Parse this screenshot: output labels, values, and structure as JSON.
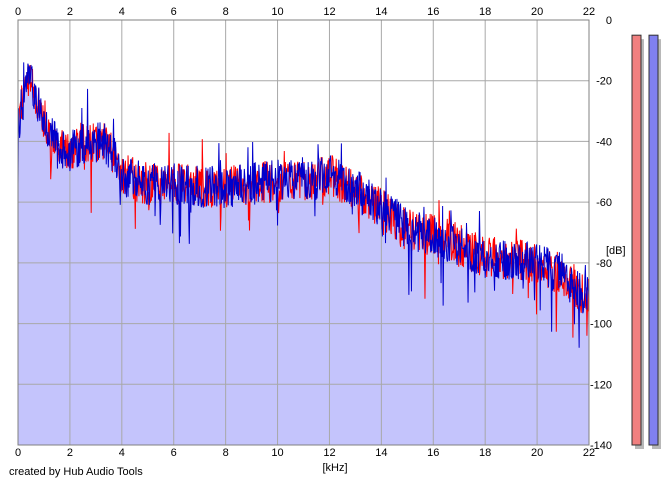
{
  "chart_data": {
    "type": "area",
    "xlabel": "[kHz]",
    "ylabel": "[dB]",
    "xlim": [
      0,
      22
    ],
    "ylim": [
      -140,
      0
    ],
    "x_ticks": [
      0,
      2,
      4,
      6,
      8,
      10,
      12,
      14,
      16,
      18,
      20,
      22
    ],
    "y_ticks": [
      0,
      -20,
      -40,
      -60,
      -80,
      -100,
      -120,
      -140
    ],
    "grid": true,
    "series": [
      {
        "color": "#0000cc"
      },
      {
        "color": "#ff0000"
      }
    ],
    "fill_color": "#c4c4fc",
    "envelope": {
      "x": [
        0,
        0.1,
        0.2,
        0.3,
        0.4,
        0.5,
        0.7,
        1.0,
        1.5,
        2.0,
        2.5,
        3.0,
        3.3,
        3.6,
        4.0,
        4.5,
        5.0,
        6.0,
        7.0,
        8.0,
        9.0,
        10.0,
        11.0,
        12.0,
        13.0,
        14.0,
        15.0,
        16.0,
        17.0,
        18.0,
        19.0,
        20.0,
        21.0,
        22.0
      ],
      "y": [
        -36,
        -30,
        -26,
        -22,
        -19,
        -20,
        -26,
        -32,
        -42,
        -44,
        -40,
        -41,
        -40,
        -43,
        -52,
        -53,
        -54,
        -54,
        -55,
        -55,
        -54,
        -53,
        -53,
        -51,
        -56,
        -62,
        -69,
        -71,
        -74,
        -78,
        -79,
        -80,
        -84,
        -92
      ]
    },
    "left_peak": {
      "x": 0.4,
      "y": -15
    },
    "level_meters": {
      "left_color": "#f08080",
      "right_color": "#8080f0",
      "left_top_db": -5,
      "right_top_db": -5
    }
  },
  "footer": {
    "credit": "created by Hub Audio Tools"
  }
}
